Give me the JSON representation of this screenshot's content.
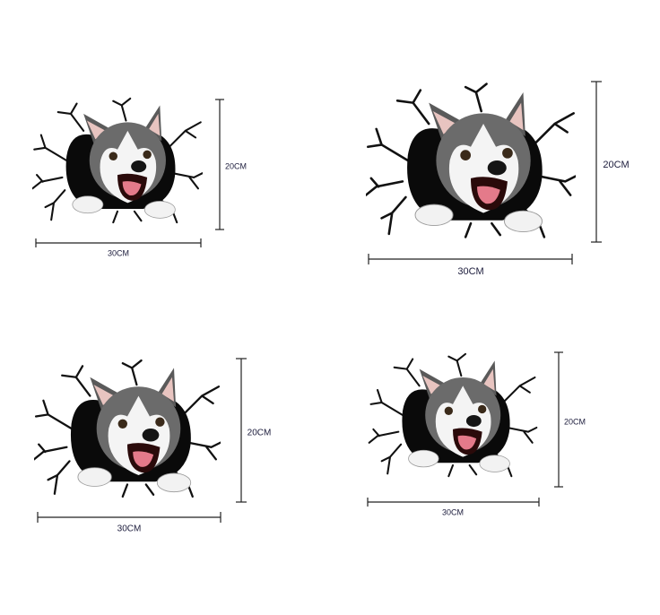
{
  "stickers": [
    {
      "width_label": "30CM",
      "height_label": "20CM"
    },
    {
      "width_label": "30CM",
      "height_label": "20CM"
    },
    {
      "width_label": "30CM",
      "height_label": "20CM"
    },
    {
      "width_label": "30CM",
      "height_label": "20CM"
    }
  ]
}
